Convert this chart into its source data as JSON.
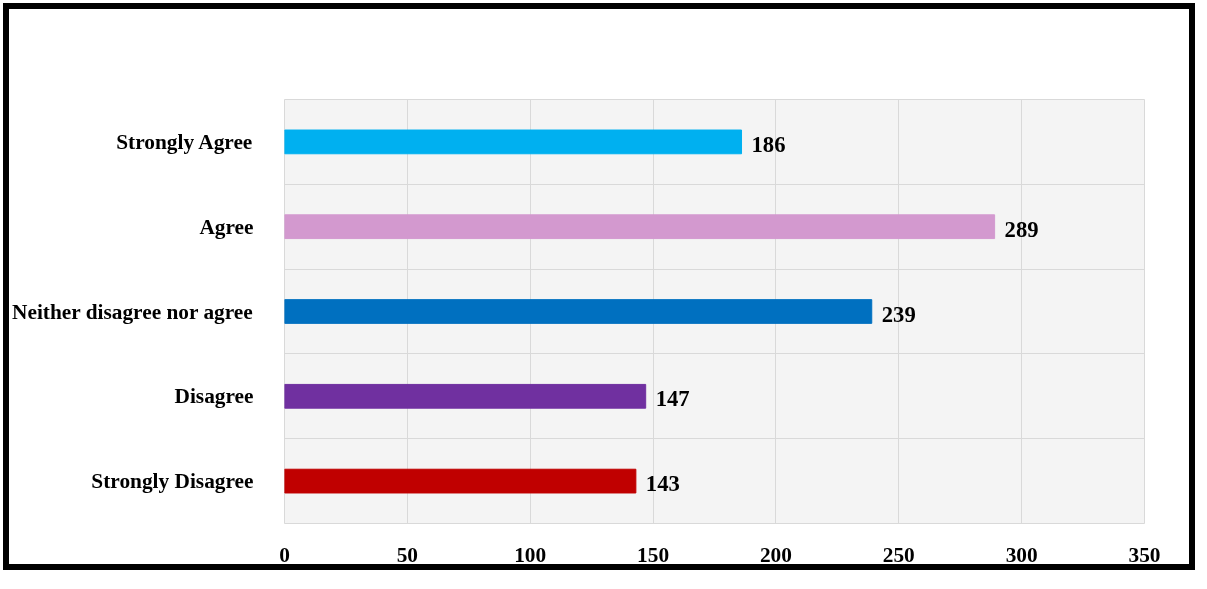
{
  "chart_data": {
    "type": "bar",
    "orientation": "horizontal",
    "categories": [
      "Strongly Agree",
      "Agree",
      "Neither disagree nor agree",
      "Disagree",
      "Strongly Disagree"
    ],
    "values": [
      186,
      289,
      239,
      147,
      143
    ],
    "colors": [
      "#00b0f0",
      "#d399cf",
      "#0070c0",
      "#7030a0",
      "#c00000"
    ],
    "xlim": [
      0,
      350
    ],
    "xticks": [
      0,
      50,
      100,
      150,
      200,
      250,
      300,
      350
    ],
    "grid": true,
    "data_labels": true
  }
}
